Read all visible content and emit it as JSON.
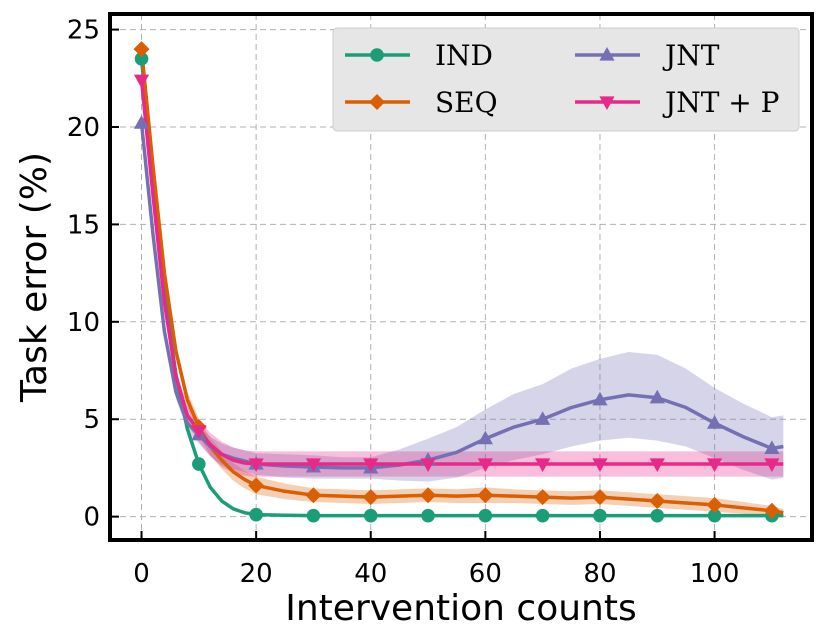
{
  "chart_data": {
    "type": "line",
    "title": "",
    "xlabel": "Intervention counts",
    "ylabel": "Task error (%)",
    "xlim": [
      -5.5,
      117
    ],
    "ylim": [
      -1.2,
      25.8
    ],
    "xticks": [
      0,
      20,
      40,
      60,
      80,
      100
    ],
    "yticks": [
      0,
      5,
      10,
      15,
      20,
      25
    ],
    "grid": true,
    "legend_position": "top-right",
    "series": [
      {
        "name": "IND",
        "color": "#1b9e77",
        "marker": "circle",
        "x": [
          0,
          2,
          4,
          6,
          8,
          10,
          12,
          14,
          16,
          18,
          20,
          25,
          30,
          40,
          50,
          60,
          70,
          80,
          90,
          100,
          110,
          112
        ],
        "values": [
          23.5,
          17.5,
          11.5,
          7.3,
          4.5,
          2.7,
          1.5,
          0.8,
          0.4,
          0.2,
          0.1,
          0.07,
          0.05,
          0.05,
          0.05,
          0.05,
          0.05,
          0.05,
          0.05,
          0.05,
          0.05,
          0.05
        ],
        "band": [
          0.15,
          0.15,
          0.15,
          0.15,
          0.15,
          0.15,
          0.12,
          0.1,
          0.08,
          0.06,
          0.05,
          0.04,
          0.03,
          0.03,
          0.03,
          0.03,
          0.03,
          0.03,
          0.03,
          0.03,
          0.03,
          0.03
        ],
        "markers_x": [
          0,
          10,
          20,
          30,
          40,
          50,
          60,
          70,
          80,
          90,
          100,
          110
        ]
      },
      {
        "name": "SEQ",
        "color": "#d95f02",
        "marker": "diamond",
        "x": [
          0,
          2,
          4,
          6,
          8,
          10,
          12,
          14,
          16,
          18,
          20,
          25,
          30,
          35,
          40,
          45,
          50,
          55,
          60,
          65,
          70,
          75,
          80,
          85,
          90,
          95,
          100,
          105,
          110,
          112
        ],
        "values": [
          24.0,
          18.0,
          12.5,
          8.5,
          6.0,
          4.6,
          3.6,
          2.9,
          2.3,
          1.9,
          1.6,
          1.3,
          1.1,
          1.05,
          1.0,
          1.05,
          1.1,
          1.05,
          1.1,
          1.05,
          1.0,
          0.95,
          1.0,
          0.9,
          0.8,
          0.7,
          0.6,
          0.45,
          0.3,
          0.2
        ],
        "band": [
          0.3,
          0.3,
          0.3,
          0.35,
          0.4,
          0.45,
          0.45,
          0.45,
          0.45,
          0.45,
          0.45,
          0.4,
          0.35,
          0.35,
          0.35,
          0.35,
          0.35,
          0.35,
          0.4,
          0.35,
          0.35,
          0.35,
          0.35,
          0.35,
          0.35,
          0.35,
          0.35,
          0.3,
          0.25,
          0.2
        ],
        "markers_x": [
          0,
          10,
          20,
          30,
          40,
          50,
          60,
          70,
          80,
          90,
          100,
          110
        ]
      },
      {
        "name": "JNT",
        "color": "#7570b3",
        "marker": "triangle-up",
        "x": [
          0,
          2,
          4,
          6,
          8,
          10,
          12,
          14,
          16,
          18,
          20,
          25,
          30,
          35,
          40,
          45,
          50,
          55,
          60,
          65,
          70,
          75,
          80,
          85,
          90,
          95,
          100,
          105,
          110,
          112
        ],
        "values": [
          20.2,
          14.5,
          9.5,
          6.4,
          4.8,
          4.2,
          3.6,
          3.2,
          3.0,
          2.85,
          2.7,
          2.6,
          2.55,
          2.5,
          2.5,
          2.65,
          2.9,
          3.3,
          4.0,
          4.6,
          5.0,
          5.6,
          6.0,
          6.25,
          6.1,
          5.6,
          4.8,
          4.1,
          3.5,
          3.6
        ],
        "band": [
          0.2,
          0.25,
          0.3,
          0.35,
          0.4,
          0.45,
          0.5,
          0.55,
          0.55,
          0.55,
          0.55,
          0.6,
          0.6,
          0.55,
          0.55,
          0.8,
          1.1,
          1.3,
          1.5,
          1.7,
          1.8,
          2.0,
          2.1,
          2.2,
          2.2,
          2.0,
          1.8,
          1.7,
          1.6,
          1.6
        ],
        "markers_x": [
          0,
          10,
          20,
          30,
          40,
          50,
          60,
          70,
          80,
          90,
          100,
          110
        ]
      },
      {
        "name": "JNT + P",
        "color": "#e7298a",
        "marker": "triangle-down",
        "x": [
          0,
          2,
          4,
          6,
          8,
          10,
          12,
          14,
          16,
          18,
          20,
          25,
          30,
          40,
          50,
          60,
          70,
          80,
          90,
          100,
          110,
          112
        ],
        "values": [
          22.4,
          16.5,
          11.0,
          7.2,
          5.2,
          4.4,
          3.7,
          3.2,
          2.9,
          2.75,
          2.7,
          2.7,
          2.7,
          2.7,
          2.7,
          2.7,
          2.7,
          2.7,
          2.7,
          2.7,
          2.7,
          2.7
        ],
        "band": [
          0.2,
          0.25,
          0.3,
          0.4,
          0.5,
          0.55,
          0.6,
          0.65,
          0.65,
          0.65,
          0.65,
          0.65,
          0.65,
          0.65,
          0.65,
          0.65,
          0.65,
          0.65,
          0.65,
          0.65,
          0.65,
          0.65
        ],
        "markers_x": [
          0,
          10,
          20,
          30,
          40,
          50,
          60,
          70,
          80,
          90,
          100,
          110
        ]
      }
    ]
  }
}
